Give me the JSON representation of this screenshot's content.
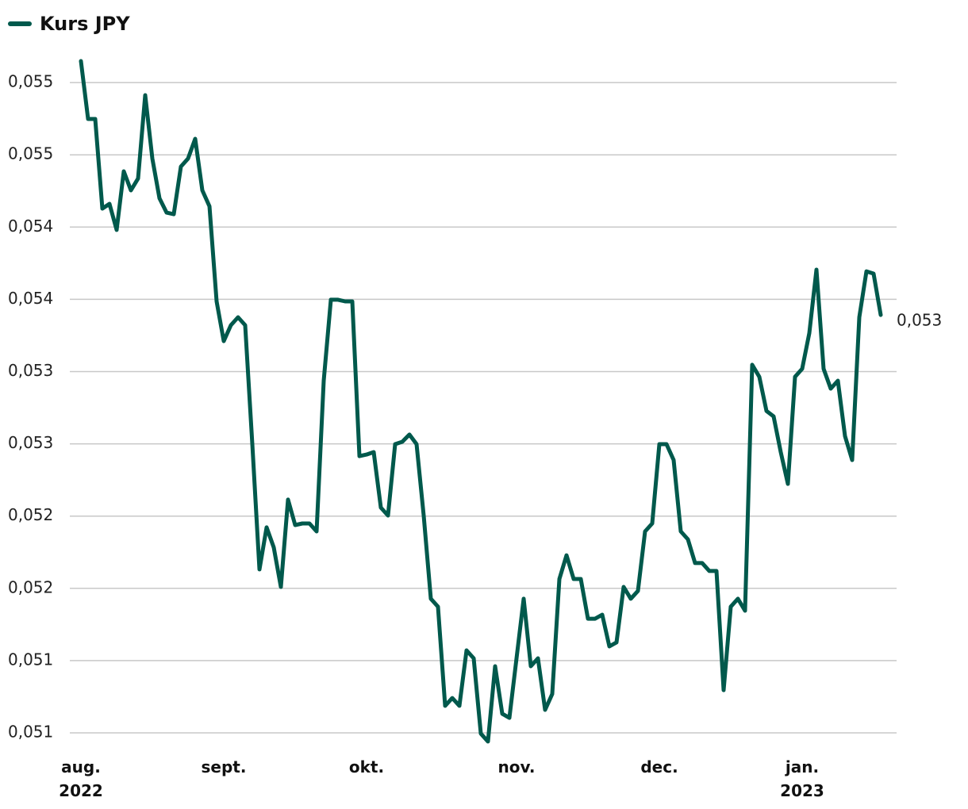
{
  "chart_data": {
    "type": "line",
    "categories": [
      "aug. 2022",
      null,
      null,
      null,
      null,
      null,
      null,
      null,
      null,
      null,
      null,
      null,
      null,
      null,
      null,
      null,
      null,
      null,
      null,
      null,
      "sept.",
      null,
      null,
      null,
      null,
      null,
      null,
      null,
      null,
      null,
      null,
      null,
      null,
      null,
      null,
      null,
      null,
      null,
      null,
      null,
      "okt.",
      null,
      null,
      null,
      null,
      null,
      null,
      null,
      null,
      null,
      null,
      null,
      null,
      null,
      null,
      null,
      null,
      null,
      null,
      null,
      null,
      "nov.",
      null,
      null,
      null,
      null,
      null,
      null,
      null,
      null,
      null,
      null,
      null,
      null,
      null,
      null,
      null,
      null,
      null,
      null,
      null,
      "dec.",
      null,
      null,
      null,
      null,
      null,
      null,
      null,
      null,
      null,
      null,
      null,
      null,
      null,
      null,
      null,
      null,
      null,
      null,
      null,
      "jan. 2023",
      null,
      null,
      null,
      null,
      null,
      null,
      null,
      null,
      null,
      null,
      null
    ],
    "series": [
      {
        "name": "Kurs JPY",
        "color": "#00594c",
        "values": [
          0.055149,
          0.054748,
          0.054748,
          0.054128,
          0.054161,
          0.05398,
          0.054386,
          0.054254,
          0.054336,
          0.054913,
          0.054474,
          0.054199,
          0.0541,
          0.054089,
          0.054419,
          0.054474,
          0.054611,
          0.054254,
          0.054144,
          0.053486,
          0.053211,
          0.053321,
          0.053376,
          0.053321,
          0.052498,
          0.051631,
          0.051922,
          0.051784,
          0.05151,
          0.052114,
          0.051938,
          0.051949,
          0.051949,
          0.051894,
          0.052937,
          0.053497,
          0.053497,
          0.053486,
          0.053486,
          0.052415,
          0.052426,
          0.052443,
          0.052059,
          0.052004,
          0.052498,
          0.052514,
          0.052564,
          0.052498,
          0.052004,
          0.051428,
          0.051373,
          0.050687,
          0.050741,
          0.050687,
          0.051071,
          0.051016,
          0.050495,
          0.05044,
          0.050961,
          0.050632,
          0.050604,
          0.051016,
          0.051428,
          0.050961,
          0.051016,
          0.050659,
          0.050769,
          0.051565,
          0.051729,
          0.051565,
          0.051565,
          0.05129,
          0.05129,
          0.051318,
          0.051098,
          0.051126,
          0.05151,
          0.051428,
          0.051482,
          0.051894,
          0.051949,
          0.052498,
          0.052498,
          0.052388,
          0.051894,
          0.051839,
          0.051675,
          0.051675,
          0.05162,
          0.05162,
          0.050796,
          0.051373,
          0.051428,
          0.051345,
          0.053047,
          0.052964,
          0.052728,
          0.05269,
          0.052443,
          0.052223,
          0.052964,
          0.053019,
          0.053266,
          0.053705,
          0.053019,
          0.052882,
          0.052937,
          0.052553,
          0.052388,
          0.053376,
          0.053694,
          0.053678,
          0.053392
        ],
        "value_labels": [
          null,
          null,
          null,
          null,
          null,
          null,
          null,
          null,
          null,
          null,
          null,
          null,
          null,
          null,
          null,
          null,
          null,
          null,
          null,
          null,
          null,
          null,
          null,
          null,
          null,
          null,
          null,
          null,
          null,
          null,
          null,
          null,
          null,
          null,
          null,
          null,
          null,
          null,
          null,
          null,
          null,
          null,
          null,
          null,
          null,
          null,
          null,
          null,
          null,
          null,
          null,
          null,
          null,
          null,
          null,
          null,
          null,
          null,
          null,
          null,
          null,
          null,
          null,
          null,
          null,
          null,
          null,
          null,
          null,
          null,
          null,
          null,
          null,
          null,
          null,
          null,
          null,
          null,
          null,
          null,
          null,
          null,
          null,
          null,
          null,
          null,
          null,
          null,
          null,
          null,
          null,
          null,
          null,
          null,
          null,
          null,
          null,
          null,
          null,
          null,
          null,
          null,
          null,
          null,
          null,
          null,
          null,
          null,
          null,
          null,
          null,
          null,
          "0,053"
        ]
      }
    ],
    "ylim": [
      0.0505,
      0.05515
    ],
    "yticks": [
      {
        "value": 0.0505,
        "label": "0,051"
      },
      {
        "value": 0.051,
        "label": "0,051"
      },
      {
        "value": 0.0515,
        "label": "0,052"
      },
      {
        "value": 0.052,
        "label": "0,052"
      },
      {
        "value": 0.0525,
        "label": "0,053"
      },
      {
        "value": 0.053,
        "label": "0,053"
      },
      {
        "value": 0.0535,
        "label": "0,054"
      },
      {
        "value": 0.054,
        "label": "0,054"
      },
      {
        "value": 0.0545,
        "label": "0,055"
      },
      {
        "value": 0.055,
        "label": "0,055"
      }
    ],
    "grid": true,
    "legend": "top-left"
  }
}
